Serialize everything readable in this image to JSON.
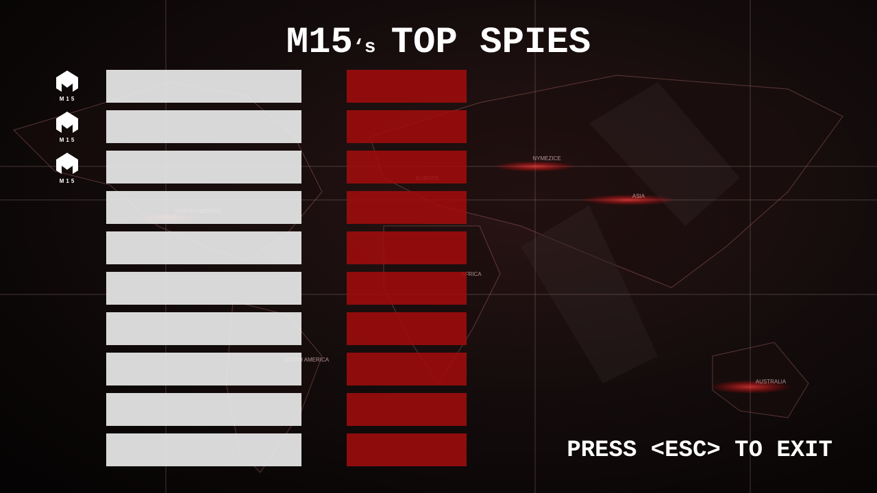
{
  "title": {
    "main": "M15",
    "possessive": "‘s",
    "rest": "TOP SPIES"
  },
  "badge_label": "M15",
  "map_labels": [
    "NYMEZICE",
    "EUROPE",
    "NORTH AMERICA",
    "ASIA",
    "AFRICA",
    "SOUTH AMERICA",
    "AUSTRALIA"
  ],
  "exit_hint": "PRESS <ESC> TO EXIT"
}
